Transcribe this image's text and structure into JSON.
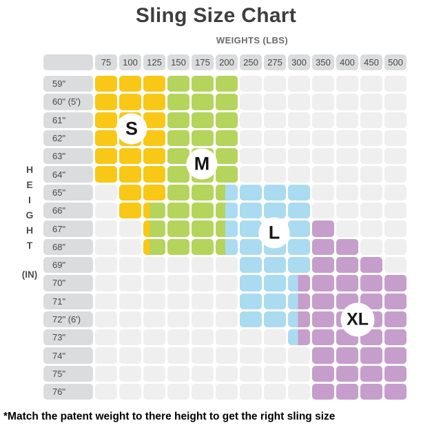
{
  "title": "Sling Size Chart",
  "weights_axis_label": "WEIGHTS (LBS)",
  "height_axis": {
    "letters": [
      "H",
      "E",
      "I",
      "G",
      "H",
      "T"
    ],
    "unit": "(IN)"
  },
  "footnote": "*Match the patent weight to there height to get the right sling size",
  "colors": {
    "yellow": "#F9C716",
    "green": "#B5D45B",
    "blue": "#ABDBF0",
    "purple": "#C59ECB",
    "cell_empty": "#EFEFF0",
    "cell_header": "#DBDCDD"
  },
  "chart_data": {
    "type": "heatmap",
    "title": "Sling Size Chart",
    "xlabel": "WEIGHTS (LBS)",
    "ylabel": "HEIGHT (IN)",
    "legend": [
      {
        "size": "S",
        "color": "#F9C716"
      },
      {
        "size": "M",
        "color": "#B5D45B"
      },
      {
        "size": "L",
        "color": "#ABDBF0"
      },
      {
        "size": "XL",
        "color": "#C59ECB"
      }
    ],
    "cell_code_meaning": {
      "": "empty",
      "Y": "S (yellow)",
      "G": "M (green)",
      "B": "L (blue)",
      "P": "XL (purple)",
      "YG": "split S/M",
      "GB": "split M/L",
      "BP": "split L/XL"
    },
    "columns": [
      "75",
      "100",
      "125",
      "150",
      "175",
      "200",
      "250",
      "275",
      "300",
      "350",
      "400",
      "450",
      "500"
    ],
    "rows": [
      {
        "label": "59\"",
        "cells": [
          "Y",
          "Y",
          "Y",
          "G",
          "G",
          "G",
          "",
          "",
          "",
          "",
          "",
          "",
          ""
        ]
      },
      {
        "label": "60\" (5')",
        "cells": [
          "Y",
          "Y",
          "Y",
          "G",
          "G",
          "G",
          "",
          "",
          "",
          "",
          "",
          "",
          ""
        ]
      },
      {
        "label": "61\"",
        "cells": [
          "Y",
          "Y",
          "Y",
          "G",
          "G",
          "G",
          "",
          "",
          "",
          "",
          "",
          "",
          ""
        ]
      },
      {
        "label": "62\"",
        "cells": [
          "Y",
          "Y",
          "Y",
          "G",
          "G",
          "G",
          "",
          "",
          "",
          "",
          "",
          "",
          ""
        ]
      },
      {
        "label": "63\"",
        "cells": [
          "Y",
          "Y",
          "Y",
          "G",
          "G",
          "G",
          "",
          "",
          "",
          "",
          "",
          "",
          ""
        ]
      },
      {
        "label": "64\"",
        "cells": [
          "Y",
          "Y",
          "Y",
          "G",
          "G",
          "G",
          "",
          "",
          "",
          "",
          "",
          "",
          ""
        ]
      },
      {
        "label": "65\"",
        "cells": [
          "",
          "Y",
          "Y",
          "G",
          "G",
          "GB",
          "B",
          "B",
          "B",
          "",
          "",
          "",
          ""
        ]
      },
      {
        "label": "66\"",
        "cells": [
          "",
          "Y",
          "YG",
          "G",
          "G",
          "GB",
          "B",
          "B",
          "B",
          "",
          "",
          "",
          ""
        ]
      },
      {
        "label": "67\"",
        "cells": [
          "",
          "",
          "YG",
          "G",
          "G",
          "GB",
          "B",
          "B",
          "B",
          "P",
          "",
          "",
          ""
        ]
      },
      {
        "label": "68\"",
        "cells": [
          "",
          "",
          "YG",
          "G",
          "G",
          "GB",
          "B",
          "B",
          "B",
          "P",
          "P",
          "",
          ""
        ]
      },
      {
        "label": "69\"",
        "cells": [
          "",
          "",
          "",
          "",
          "",
          "",
          "B",
          "B",
          "B",
          "P",
          "P",
          "P",
          ""
        ]
      },
      {
        "label": "70\"",
        "cells": [
          "",
          "",
          "",
          "",
          "",
          "",
          "B",
          "B",
          "BP",
          "P",
          "P",
          "P",
          "P"
        ]
      },
      {
        "label": "71\"",
        "cells": [
          "",
          "",
          "",
          "",
          "",
          "",
          "B",
          "B",
          "BP",
          "P",
          "P",
          "P",
          "P"
        ]
      },
      {
        "label": "72\" (6')",
        "cells": [
          "",
          "",
          "",
          "",
          "",
          "",
          "B",
          "B",
          "BP",
          "P",
          "P",
          "P",
          "P"
        ]
      },
      {
        "label": "73\"",
        "cells": [
          "",
          "",
          "",
          "",
          "",
          "",
          "",
          "",
          "BP",
          "P",
          "P",
          "P",
          "P"
        ]
      },
      {
        "label": "74\"",
        "cells": [
          "",
          "",
          "",
          "",
          "",
          "",
          "",
          "",
          "",
          "P",
          "P",
          "P",
          "P"
        ]
      },
      {
        "label": "75\"",
        "cells": [
          "",
          "",
          "",
          "",
          "",
          "",
          "",
          "",
          "",
          "P",
          "P",
          "P",
          "P"
        ]
      },
      {
        "label": "76\"",
        "cells": [
          "",
          "",
          "",
          "",
          "",
          "",
          "",
          "",
          "",
          "P",
          "P",
          "P",
          "P"
        ]
      }
    ],
    "size_markers": [
      {
        "label": "S"
      },
      {
        "label": "M"
      },
      {
        "label": "L"
      },
      {
        "label": "XL"
      }
    ]
  }
}
